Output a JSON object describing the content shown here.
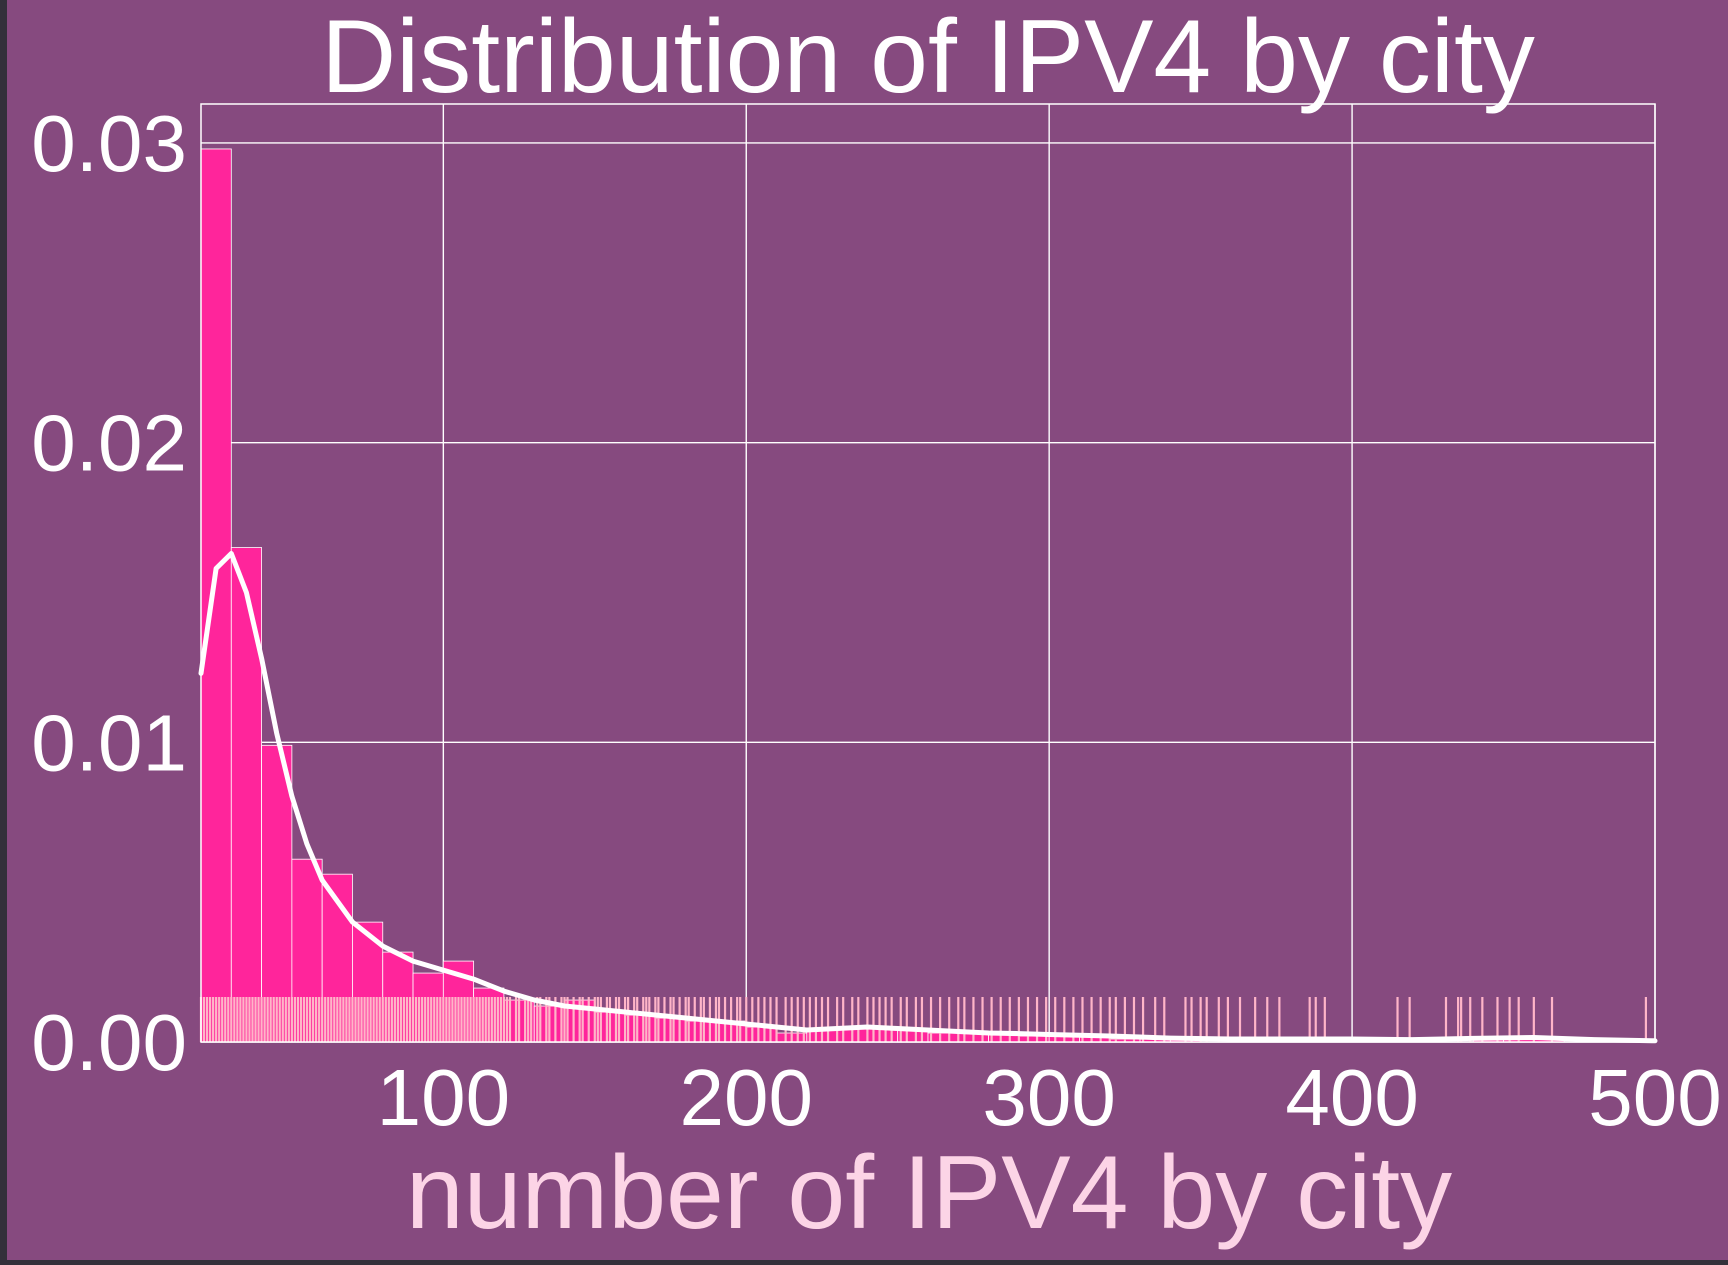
{
  "chart_data": {
    "type": "histogram",
    "title": "Distribution of IPV4 by city",
    "xlabel": "number of IPV4 by city",
    "ylabel": "",
    "xlim": [
      20,
      500
    ],
    "ylim": [
      0,
      0.0313
    ],
    "xticks": [
      "100",
      "200",
      "300",
      "400",
      "500"
    ],
    "xtick_values": [
      100,
      200,
      300,
      400,
      500
    ],
    "yticks": [
      "0.00",
      "0.01",
      "0.02",
      "0.03"
    ],
    "ytick_values": [
      0,
      0.01,
      0.02,
      0.03
    ],
    "grid": true,
    "bins": [
      {
        "x0": 20,
        "x1": 30,
        "density": 0.0298
      },
      {
        "x0": 30,
        "x1": 40,
        "density": 0.0165
      },
      {
        "x0": 40,
        "x1": 50,
        "density": 0.0099
      },
      {
        "x0": 50,
        "x1": 60,
        "density": 0.0061
      },
      {
        "x0": 60,
        "x1": 70,
        "density": 0.0056
      },
      {
        "x0": 70,
        "x1": 80,
        "density": 0.004
      },
      {
        "x0": 80,
        "x1": 90,
        "density": 0.003
      },
      {
        "x0": 90,
        "x1": 100,
        "density": 0.0023
      },
      {
        "x0": 100,
        "x1": 110,
        "density": 0.0027
      },
      {
        "x0": 110,
        "x1": 120,
        "density": 0.0018
      },
      {
        "x0": 120,
        "x1": 130,
        "density": 0.0014
      },
      {
        "x0": 130,
        "x1": 140,
        "density": 0.0012
      },
      {
        "x0": 140,
        "x1": 150,
        "density": 0.0014
      },
      {
        "x0": 150,
        "x1": 160,
        "density": 0.001
      },
      {
        "x0": 160,
        "x1": 170,
        "density": 0.0009
      },
      {
        "x0": 170,
        "x1": 180,
        "density": 0.0008
      },
      {
        "x0": 180,
        "x1": 190,
        "density": 0.0007
      },
      {
        "x0": 190,
        "x1": 200,
        "density": 0.0007
      },
      {
        "x0": 200,
        "x1": 210,
        "density": 0.0005
      },
      {
        "x0": 210,
        "x1": 220,
        "density": 0.0003
      },
      {
        "x0": 220,
        "x1": 230,
        "density": 0.0004
      },
      {
        "x0": 230,
        "x1": 240,
        "density": 0.0005
      },
      {
        "x0": 240,
        "x1": 250,
        "density": 0.0005
      },
      {
        "x0": 250,
        "x1": 260,
        "density": 0.0004
      },
      {
        "x0": 260,
        "x1": 270,
        "density": 0.0003
      },
      {
        "x0": 270,
        "x1": 280,
        "density": 0.0003
      },
      {
        "x0": 280,
        "x1": 290,
        "density": 0.0003
      },
      {
        "x0": 290,
        "x1": 300,
        "density": 0.0002
      },
      {
        "x0": 300,
        "x1": 310,
        "density": 0.0002
      },
      {
        "x0": 310,
        "x1": 320,
        "density": 0.0002
      },
      {
        "x0": 320,
        "x1": 330,
        "density": 0.0001
      },
      {
        "x0": 330,
        "x1": 340,
        "density": 0.0001
      },
      {
        "x0": 340,
        "x1": 350,
        "density": 0.0001
      },
      {
        "x0": 360,
        "x1": 370,
        "density": 0.0001
      },
      {
        "x0": 380,
        "x1": 390,
        "density": 0.0001
      },
      {
        "x0": 390,
        "x1": 400,
        "density": 0.0001
      },
      {
        "x0": 440,
        "x1": 450,
        "density": 0.0001
      },
      {
        "x0": 450,
        "x1": 460,
        "density": 0.0001
      },
      {
        "x0": 460,
        "x1": 470,
        "density": 0.0001
      }
    ],
    "kde": {
      "x": [
        20,
        25,
        30,
        35,
        40,
        45,
        50,
        55,
        60,
        70,
        80,
        90,
        100,
        110,
        120,
        130,
        140,
        150,
        160,
        170,
        180,
        190,
        200,
        210,
        220,
        230,
        240,
        250,
        260,
        270,
        280,
        290,
        300,
        320,
        340,
        360,
        380,
        400,
        420,
        440,
        460,
        480,
        500
      ],
      "y": [
        0.0123,
        0.0158,
        0.0163,
        0.015,
        0.0128,
        0.0103,
        0.0082,
        0.0066,
        0.0054,
        0.004,
        0.0032,
        0.0027,
        0.0024,
        0.0021,
        0.0017,
        0.0014,
        0.0012,
        0.0011,
        0.001,
        0.0009,
        0.0008,
        0.0007,
        0.0006,
        0.0005,
        0.0004,
        0.00045,
        0.0005,
        0.00045,
        0.0004,
        0.00035,
        0.0003,
        0.00028,
        0.00025,
        0.0002,
        0.00013,
        0.0001,
        0.0001,
        0.0001,
        8e-05,
        0.00012,
        0.00015,
        8e-05,
        4e-05
      ]
    },
    "rug_x": [
      20,
      21,
      22,
      23,
      24,
      25,
      26,
      27,
      28,
      29,
      30,
      31,
      32,
      33,
      34,
      35,
      36,
      37,
      38,
      39,
      40,
      41,
      42,
      43,
      44,
      45,
      46,
      47,
      48,
      49,
      50,
      51,
      52,
      53,
      54,
      55,
      56,
      57,
      58,
      59,
      60,
      61,
      62,
      63,
      64,
      65,
      66,
      67,
      68,
      69,
      70,
      71,
      72,
      73,
      74,
      75,
      76,
      77,
      78,
      79,
      80,
      81,
      82,
      83,
      84,
      85,
      86,
      87,
      88,
      89,
      90,
      91,
      92,
      93,
      94,
      95,
      96,
      97,
      98,
      99,
      100,
      101,
      102,
      103,
      104,
      105,
      106,
      107,
      108,
      109,
      110,
      111,
      112,
      113,
      114,
      115,
      116,
      117,
      118,
      119,
      120,
      121,
      122,
      124,
      125,
      127,
      128,
      129,
      131,
      132,
      134,
      135,
      137,
      139,
      140,
      141,
      143,
      145,
      146,
      148,
      150,
      151,
      152,
      154,
      155,
      157,
      158,
      160,
      161,
      163,
      164,
      166,
      167,
      168,
      170,
      171,
      173,
      175,
      176,
      178,
      180,
      181,
      183,
      185,
      186,
      188,
      190,
      191,
      193,
      195,
      197,
      198,
      200,
      202,
      204,
      206,
      208,
      210,
      213,
      215,
      217,
      219,
      221,
      223,
      225,
      227,
      230,
      232,
      235,
      237,
      240,
      242,
      244,
      246,
      248,
      251,
      253,
      256,
      258,
      261,
      264,
      267,
      270,
      272,
      275,
      278,
      281,
      284,
      287,
      290,
      293,
      296,
      299,
      302,
      305,
      308,
      311,
      314,
      317,
      320,
      322,
      325,
      328,
      331,
      335,
      338,
      345,
      347,
      350,
      352,
      356,
      359,
      363,
      368,
      372,
      376,
      386,
      388,
      391,
      415,
      419,
      431,
      435,
      436,
      439,
      443,
      448,
      452,
      455,
      460,
      466,
      497
    ]
  }
}
